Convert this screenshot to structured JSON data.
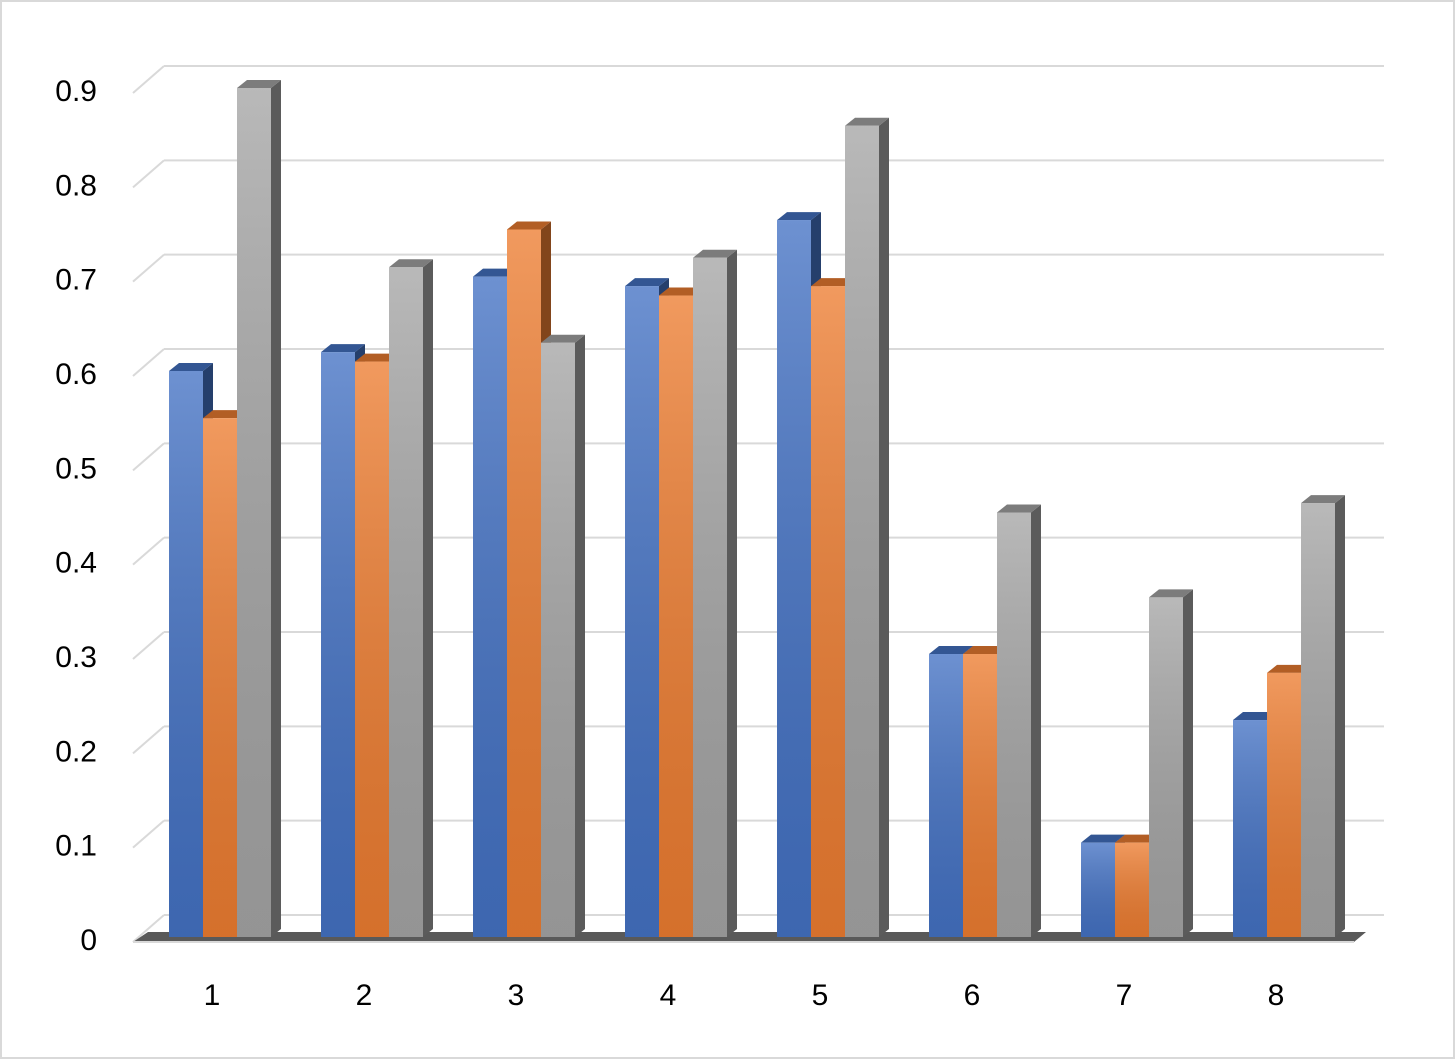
{
  "chart_data": {
    "type": "bar3d",
    "categories": [
      "1",
      "2",
      "3",
      "4",
      "5",
      "6",
      "7",
      "8"
    ],
    "series": [
      {
        "color": "#4472c4",
        "values": [
          0.6,
          0.62,
          0.7,
          0.69,
          0.76,
          0.3,
          0.1,
          0.23
        ]
      },
      {
        "color": "#ed7d31",
        "values": [
          0.55,
          0.61,
          0.75,
          0.68,
          0.69,
          0.3,
          0.1,
          0.28
        ]
      },
      {
        "color": "#a5a5a5",
        "values": [
          0.9,
          0.71,
          0.63,
          0.72,
          0.86,
          0.45,
          0.36,
          0.46
        ]
      }
    ],
    "ylim": [
      0,
      0.9
    ],
    "yticks": [
      0,
      0.1,
      0.2,
      0.3,
      0.4,
      0.5,
      0.6,
      0.7,
      0.8,
      0.9
    ],
    "grid": true
  }
}
